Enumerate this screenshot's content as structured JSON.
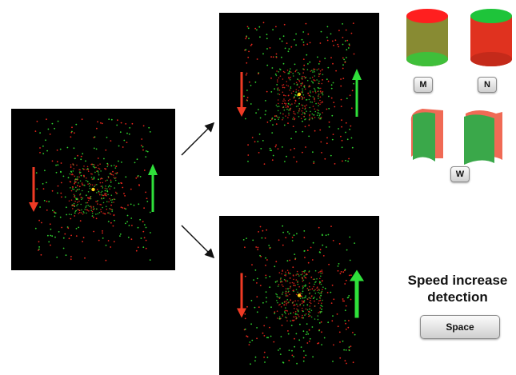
{
  "keys": {
    "m": "M",
    "n": "N",
    "w": "W",
    "space": "Space"
  },
  "task": {
    "title": "Speed increase detection"
  },
  "colors": {
    "red_dots": "#e8261c",
    "green_dots": "#2fd22f",
    "red_arrow": "#ef3a24",
    "green_arrow": "#2fe03a",
    "fixation": "#ffd21a"
  },
  "icons": {
    "cylinder_m": "cylinder-red-top-icon",
    "cylinder_n": "cylinder-green-top-icon",
    "halves_w": "split-cylinder-halves-icon",
    "red_arrow": "arrow-down-icon",
    "green_arrow": "arrow-up-icon"
  }
}
